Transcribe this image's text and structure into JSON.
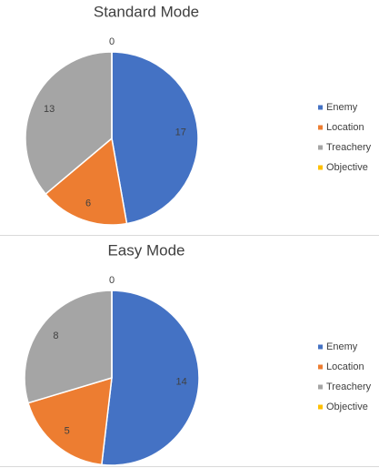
{
  "chart_data": [
    {
      "type": "pie",
      "title": "Standard Mode",
      "categories": [
        "Enemy",
        "Location",
        "Treachery",
        "Objective"
      ],
      "values": [
        17,
        6,
        13,
        0
      ],
      "colors": [
        "#4472c4",
        "#ed7d31",
        "#a5a5a5",
        "#ffc000"
      ],
      "legend": "right"
    },
    {
      "type": "pie",
      "title": "Easy Mode",
      "categories": [
        "Enemy",
        "Location",
        "Treachery",
        "Objective"
      ],
      "values": [
        14,
        5,
        8,
        0
      ],
      "colors": [
        "#4472c4",
        "#ed7d31",
        "#a5a5a5",
        "#ffc000"
      ],
      "legend": "right"
    }
  ]
}
